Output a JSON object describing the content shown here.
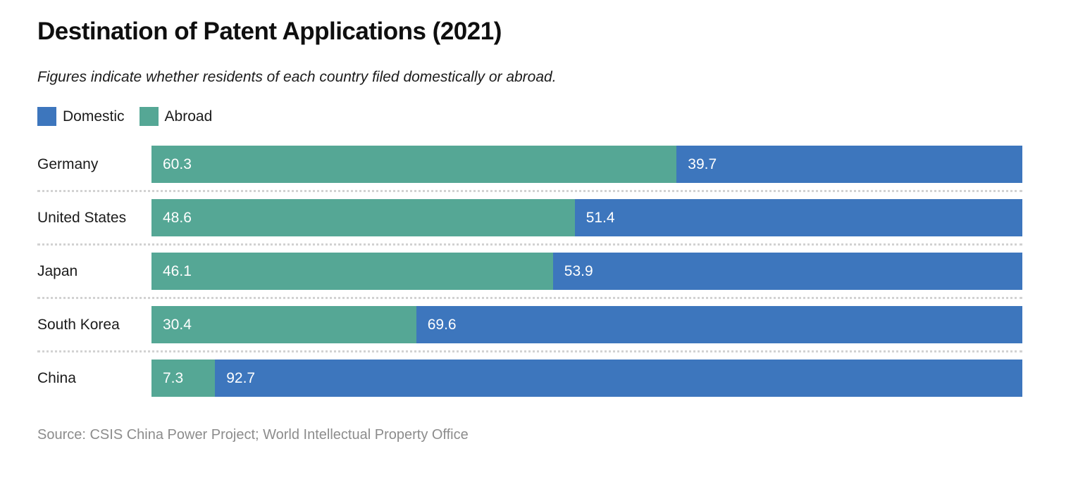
{
  "chart_data": {
    "type": "bar",
    "orientation": "horizontal",
    "stacked": true,
    "title": "Destination of Patent Applications (2021)",
    "subtitle": "Figures indicate whether residents of each country filed domestically or abroad.",
    "categories": [
      "Germany",
      "United States",
      "Japan",
      "South Korea",
      "China"
    ],
    "series": [
      {
        "name": "Abroad",
        "color": "#55a795",
        "values": [
          60.3,
          48.6,
          46.1,
          30.4,
          7.3
        ]
      },
      {
        "name": "Domestic",
        "color": "#3d76bd",
        "values": [
          39.7,
          51.4,
          53.9,
          69.6,
          92.7
        ]
      }
    ],
    "xlim": [
      0,
      100
    ],
    "value_labels": "inside-left",
    "grid": false,
    "legend_position": "top-left",
    "legend": [
      {
        "label": "Domestic",
        "color": "#3d76bd"
      },
      {
        "label": "Abroad",
        "color": "#55a795"
      }
    ],
    "source": "Source: CSIS China Power Project; World Intellectual Property Office"
  }
}
